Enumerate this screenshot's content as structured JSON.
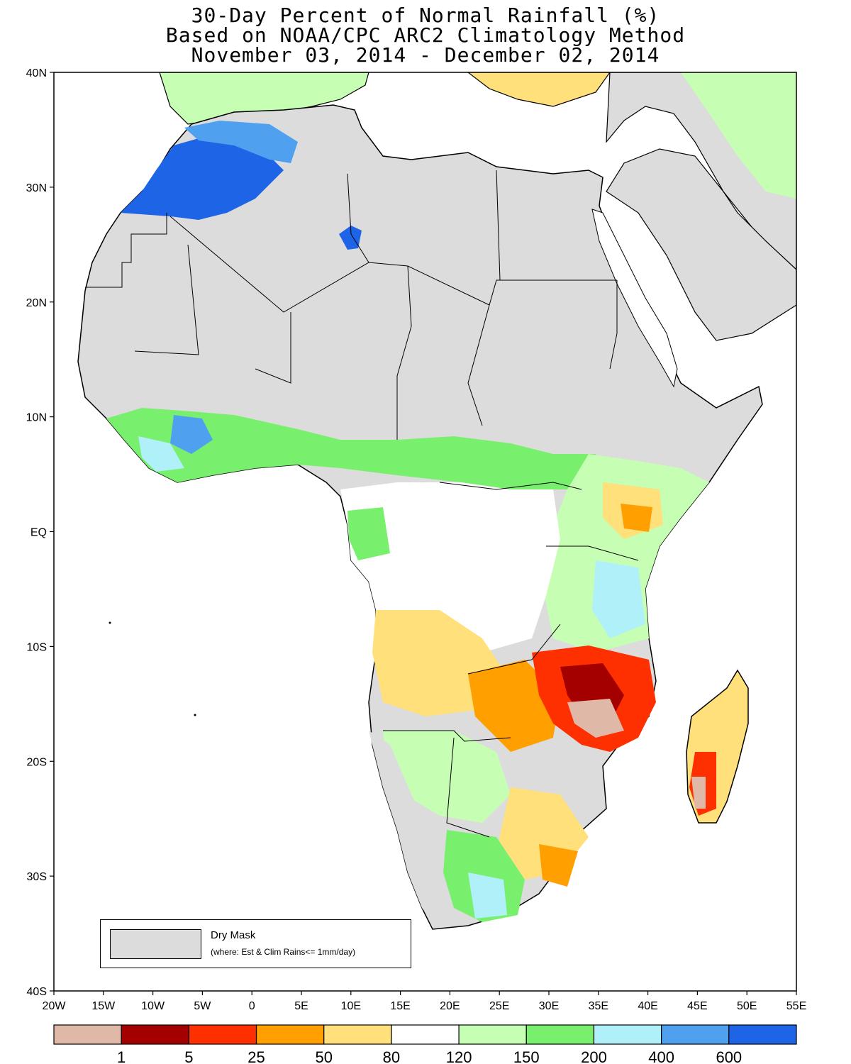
{
  "title": {
    "line1": "30-Day Percent of Normal Rainfall (%)",
    "line2": "Based on NOAA/CPC ARC2 Climatology Method",
    "line3": "November 03, 2014 - December 02, 2014"
  },
  "lat_labels": [
    "40N",
    "30N",
    "20N",
    "10N",
    "EQ",
    "10S",
    "20S",
    "30S",
    "40S"
  ],
  "lon_labels": [
    "20W",
    "15W",
    "10W",
    "5W",
    "0",
    "5E",
    "10E",
    "15E",
    "20E",
    "25E",
    "30E",
    "35E",
    "40E",
    "45E",
    "50E",
    "55E"
  ],
  "legend": {
    "label": "Dry Mask",
    "note": "(where: Est & Clim Rains<= 1mm/day)"
  },
  "colorbar": {
    "colors": [
      "#e0b8a8",
      "#a50000",
      "#ff3000",
      "#ff9f00",
      "#ffe07a",
      "#ffffff",
      "#c6ffb4",
      "#78f06e",
      "#b0f0f8",
      "#50a0f0",
      "#1e64e6"
    ],
    "labels": [
      "1",
      "5",
      "25",
      "50",
      "80",
      "120",
      "150",
      "200",
      "400",
      "600"
    ]
  },
  "colors": {
    "dry_mask": "#dcdcdc",
    "ocean": "#ffffff",
    "border": "#000000"
  }
}
